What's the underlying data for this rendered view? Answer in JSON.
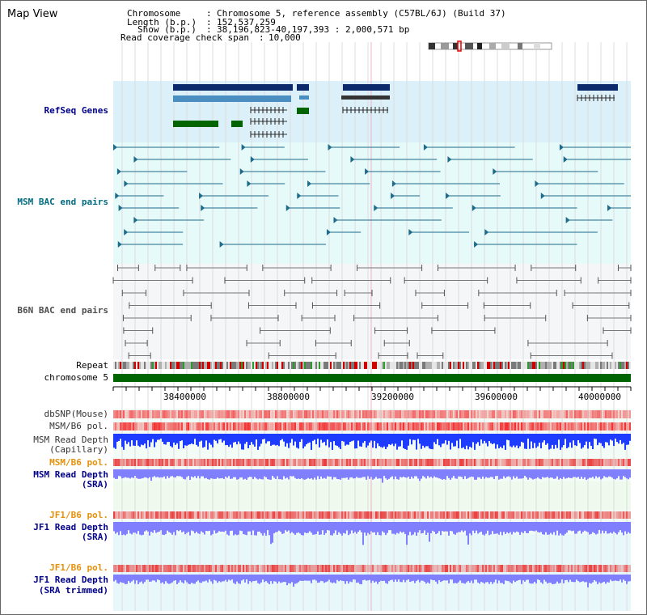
{
  "title": "Map View",
  "info": {
    "chromosome_key": "Chromosome",
    "chromosome_val": "Chromosome 5, reference assembly (C57BL/6J) (Build 37)",
    "length_key": "Length (b.p.)",
    "length_val": "152,537,259",
    "show_key": "Show (b.p.)",
    "show_val": "38,196,823-40,197,393 : 2,000,571 bp",
    "span_key": "Read coverage check span",
    "span_val": "10,000"
  },
  "tracks": {
    "refseq": "RefSeq Genes",
    "msm_bac": "MSM BAC end pairs",
    "b6n_bac": "B6N BAC end pairs",
    "repeat": "Repeat",
    "chromosome": "chromosome 5",
    "dbsnp": "dbSNP(Mouse)",
    "msm_b6_pol": "MSM/B6 pol.",
    "msm_read_depth_cap_1": "MSM Read Depth",
    "msm_read_depth_cap_2": "(Capillary)",
    "msm_b6_pol_2": "MSM/B6 pol.",
    "msm_read_depth_sra_1": "MSM Read Depth",
    "msm_read_depth_sra_2": "(SRA)",
    "jf1_b6_pol": "JF1/B6 pol.",
    "jf1_read_depth_1": "JF1 Read Depth",
    "jf1_read_depth_2": "(SRA)",
    "jf1_b6_pol_2": "JF1/B6 pol.",
    "jf1_trim_1": "JF1 Read Depth",
    "jf1_trim_2": "(SRA trimmed)"
  },
  "axis_ticks": [
    "38400000",
    "38800000",
    "39200000",
    "39600000",
    "40000000"
  ],
  "colors": {
    "refseq_bg": "#dcf0fa",
    "bac_bg": "#e6fafa",
    "navy_gene": "#0a2a6b",
    "blue_gene": "#4a8fc0",
    "green_gene": "#006400",
    "msm_line": "#1f6b8a",
    "b6n_line": "#777777",
    "polymorphism": "#ff4c4c",
    "depth_capillary": "#1e3cff",
    "depth_sra": "#8080ff"
  }
}
